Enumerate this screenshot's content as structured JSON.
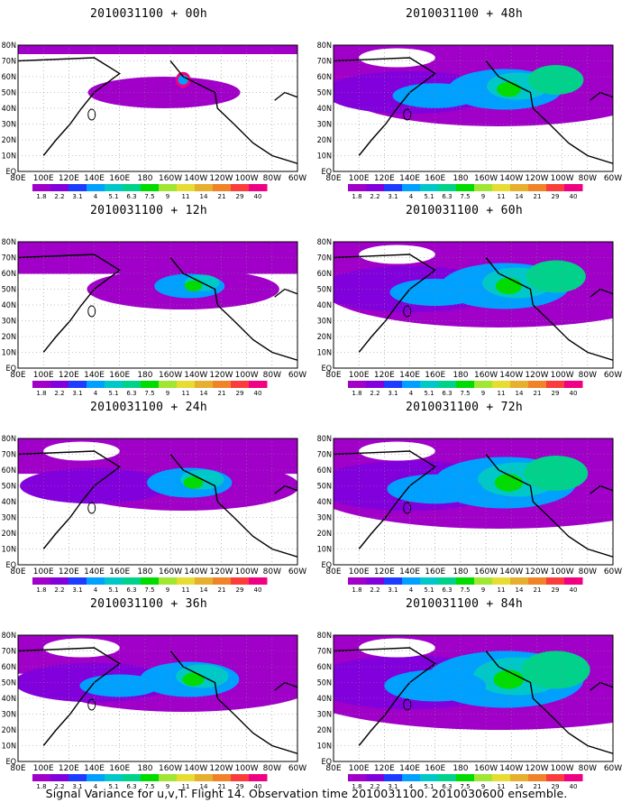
{
  "footer": "Signal Variance for u,v,T. Flight 14. Observation time 2010031100. 2010030600 ensemble.",
  "colorbar": {
    "labels": [
      "1.8",
      "2.2",
      "3.1",
      "4",
      "5.1",
      "6.3",
      "7.5",
      "9",
      "11",
      "14",
      "21",
      "29",
      "40"
    ],
    "colors": [
      "#a000c8",
      "#8200dc",
      "#1e3cff",
      "#00a0ff",
      "#00c8c8",
      "#00d28c",
      "#00dc00",
      "#a0e632",
      "#e6dc32",
      "#e6af2d",
      "#f08228",
      "#fa3c3c",
      "#f00082"
    ]
  },
  "lat_labels": [
    "80N",
    "70N",
    "60N",
    "50N",
    "40N",
    "30N",
    "20N",
    "10N",
    "EQ"
  ],
  "lon_labels": [
    "80E",
    "100E",
    "120E",
    "140E",
    "160E",
    "180",
    "160W",
    "140W",
    "120W",
    "100W",
    "80W",
    "60W"
  ],
  "panels": [
    {
      "title": "2010031100 + 00h",
      "hour": 0
    },
    {
      "title": "2010031100 + 48h",
      "hour": 48
    },
    {
      "title": "2010031100 + 12h",
      "hour": 12
    },
    {
      "title": "2010031100 + 60h",
      "hour": 60
    },
    {
      "title": "2010031100 + 24h",
      "hour": 24
    },
    {
      "title": "2010031100 + 72h",
      "hour": 72
    },
    {
      "title": "2010031100 + 36h",
      "hour": 36
    },
    {
      "title": "2010031100 + 84h",
      "hour": 84
    }
  ]
}
